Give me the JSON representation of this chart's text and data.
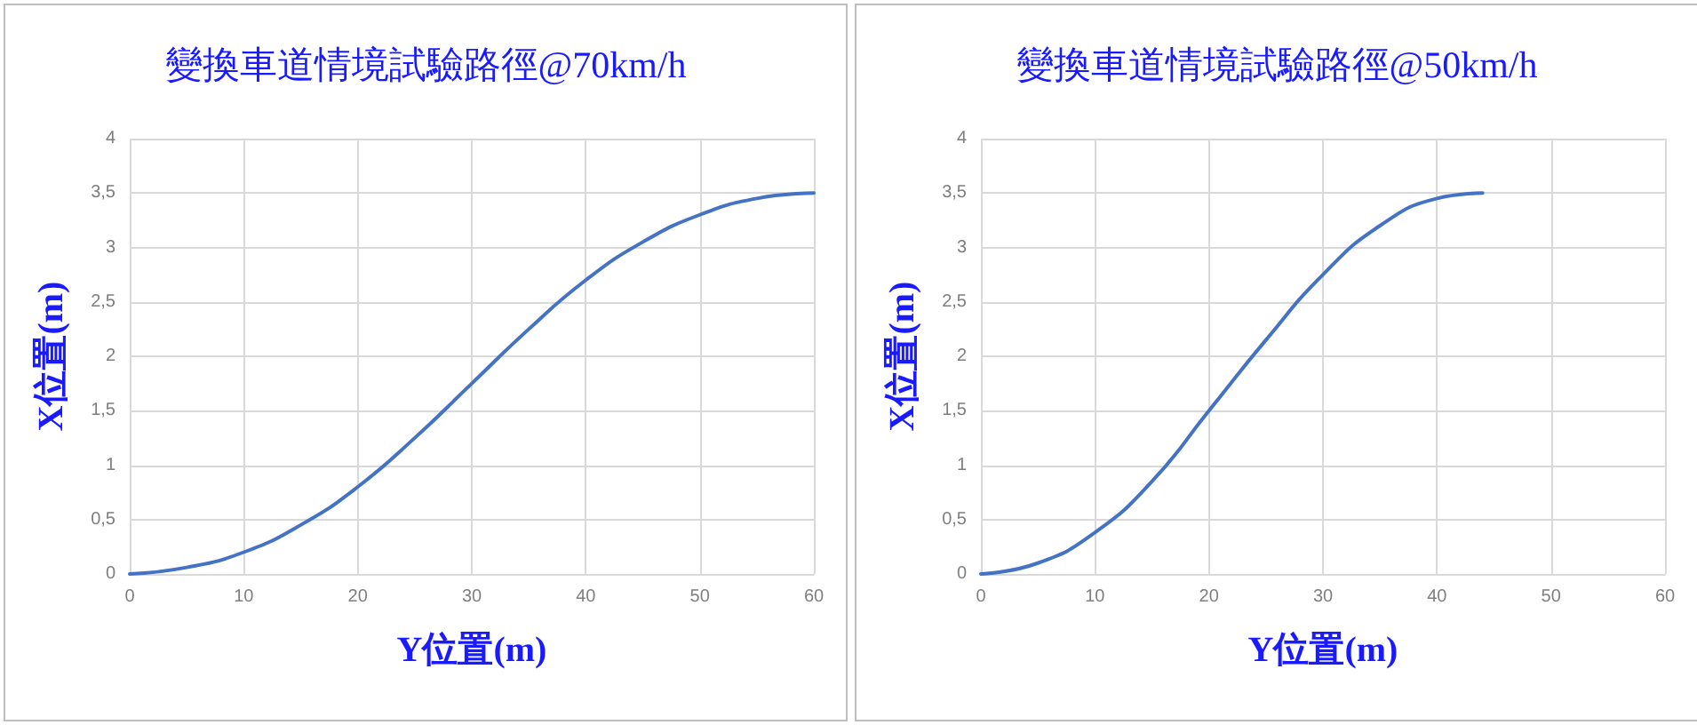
{
  "chart_data": [
    {
      "type": "line",
      "title": "變換車道情境試驗路徑@70km/h",
      "xlabel": "Y位置(m)",
      "ylabel": "X位置(m)",
      "x": [
        0,
        5,
        10,
        15,
        20,
        25,
        30,
        35,
        40,
        45,
        50,
        55,
        60
      ],
      "series": [
        {
          "color": "#4472c4",
          "values": [
            0,
            0.06,
            0.2,
            0.45,
            0.8,
            1.25,
            1.75,
            2.25,
            2.7,
            3.05,
            3.3,
            3.45,
            3.5
          ]
        }
      ],
      "xlim": [
        0,
        60
      ],
      "xticks": [
        0,
        10,
        20,
        30,
        40,
        50,
        60
      ],
      "ylim": [
        0,
        4
      ],
      "yticks": [
        0,
        {
          "value": 0.5,
          "label": "0,5"
        },
        1,
        {
          "value": 1.5,
          "label": "1,5"
        },
        2,
        {
          "value": 2.5,
          "label": "2,5"
        },
        3,
        {
          "value": 3.5,
          "label": "3,5"
        },
        4
      ],
      "grid": true,
      "marker": "none",
      "line_style": "solid"
    },
    {
      "type": "line",
      "title": "變換車道情境試驗路徑@50km/h",
      "xlabel": "Y位置(m)",
      "ylabel": "X位置(m)",
      "x": [
        0,
        5,
        10,
        15,
        20,
        25,
        30,
        35,
        40,
        44
      ],
      "series": [
        {
          "color": "#4472c4",
          "values": [
            0,
            0.1,
            0.38,
            0.85,
            1.5,
            2.15,
            2.75,
            3.2,
            3.45,
            3.5
          ]
        }
      ],
      "xlim": [
        0,
        60
      ],
      "xticks": [
        0,
        10,
        20,
        30,
        40,
        50,
        60
      ],
      "ylim": [
        0,
        4
      ],
      "yticks": [
        0,
        {
          "value": 0.5,
          "label": "0,5"
        },
        1,
        {
          "value": 1.5,
          "label": "1,5"
        },
        2,
        {
          "value": 2.5,
          "label": "2,5"
        },
        3,
        {
          "value": 3.5,
          "label": "3,5"
        },
        4
      ],
      "grid": true,
      "marker": "none",
      "line_style": "solid"
    }
  ]
}
